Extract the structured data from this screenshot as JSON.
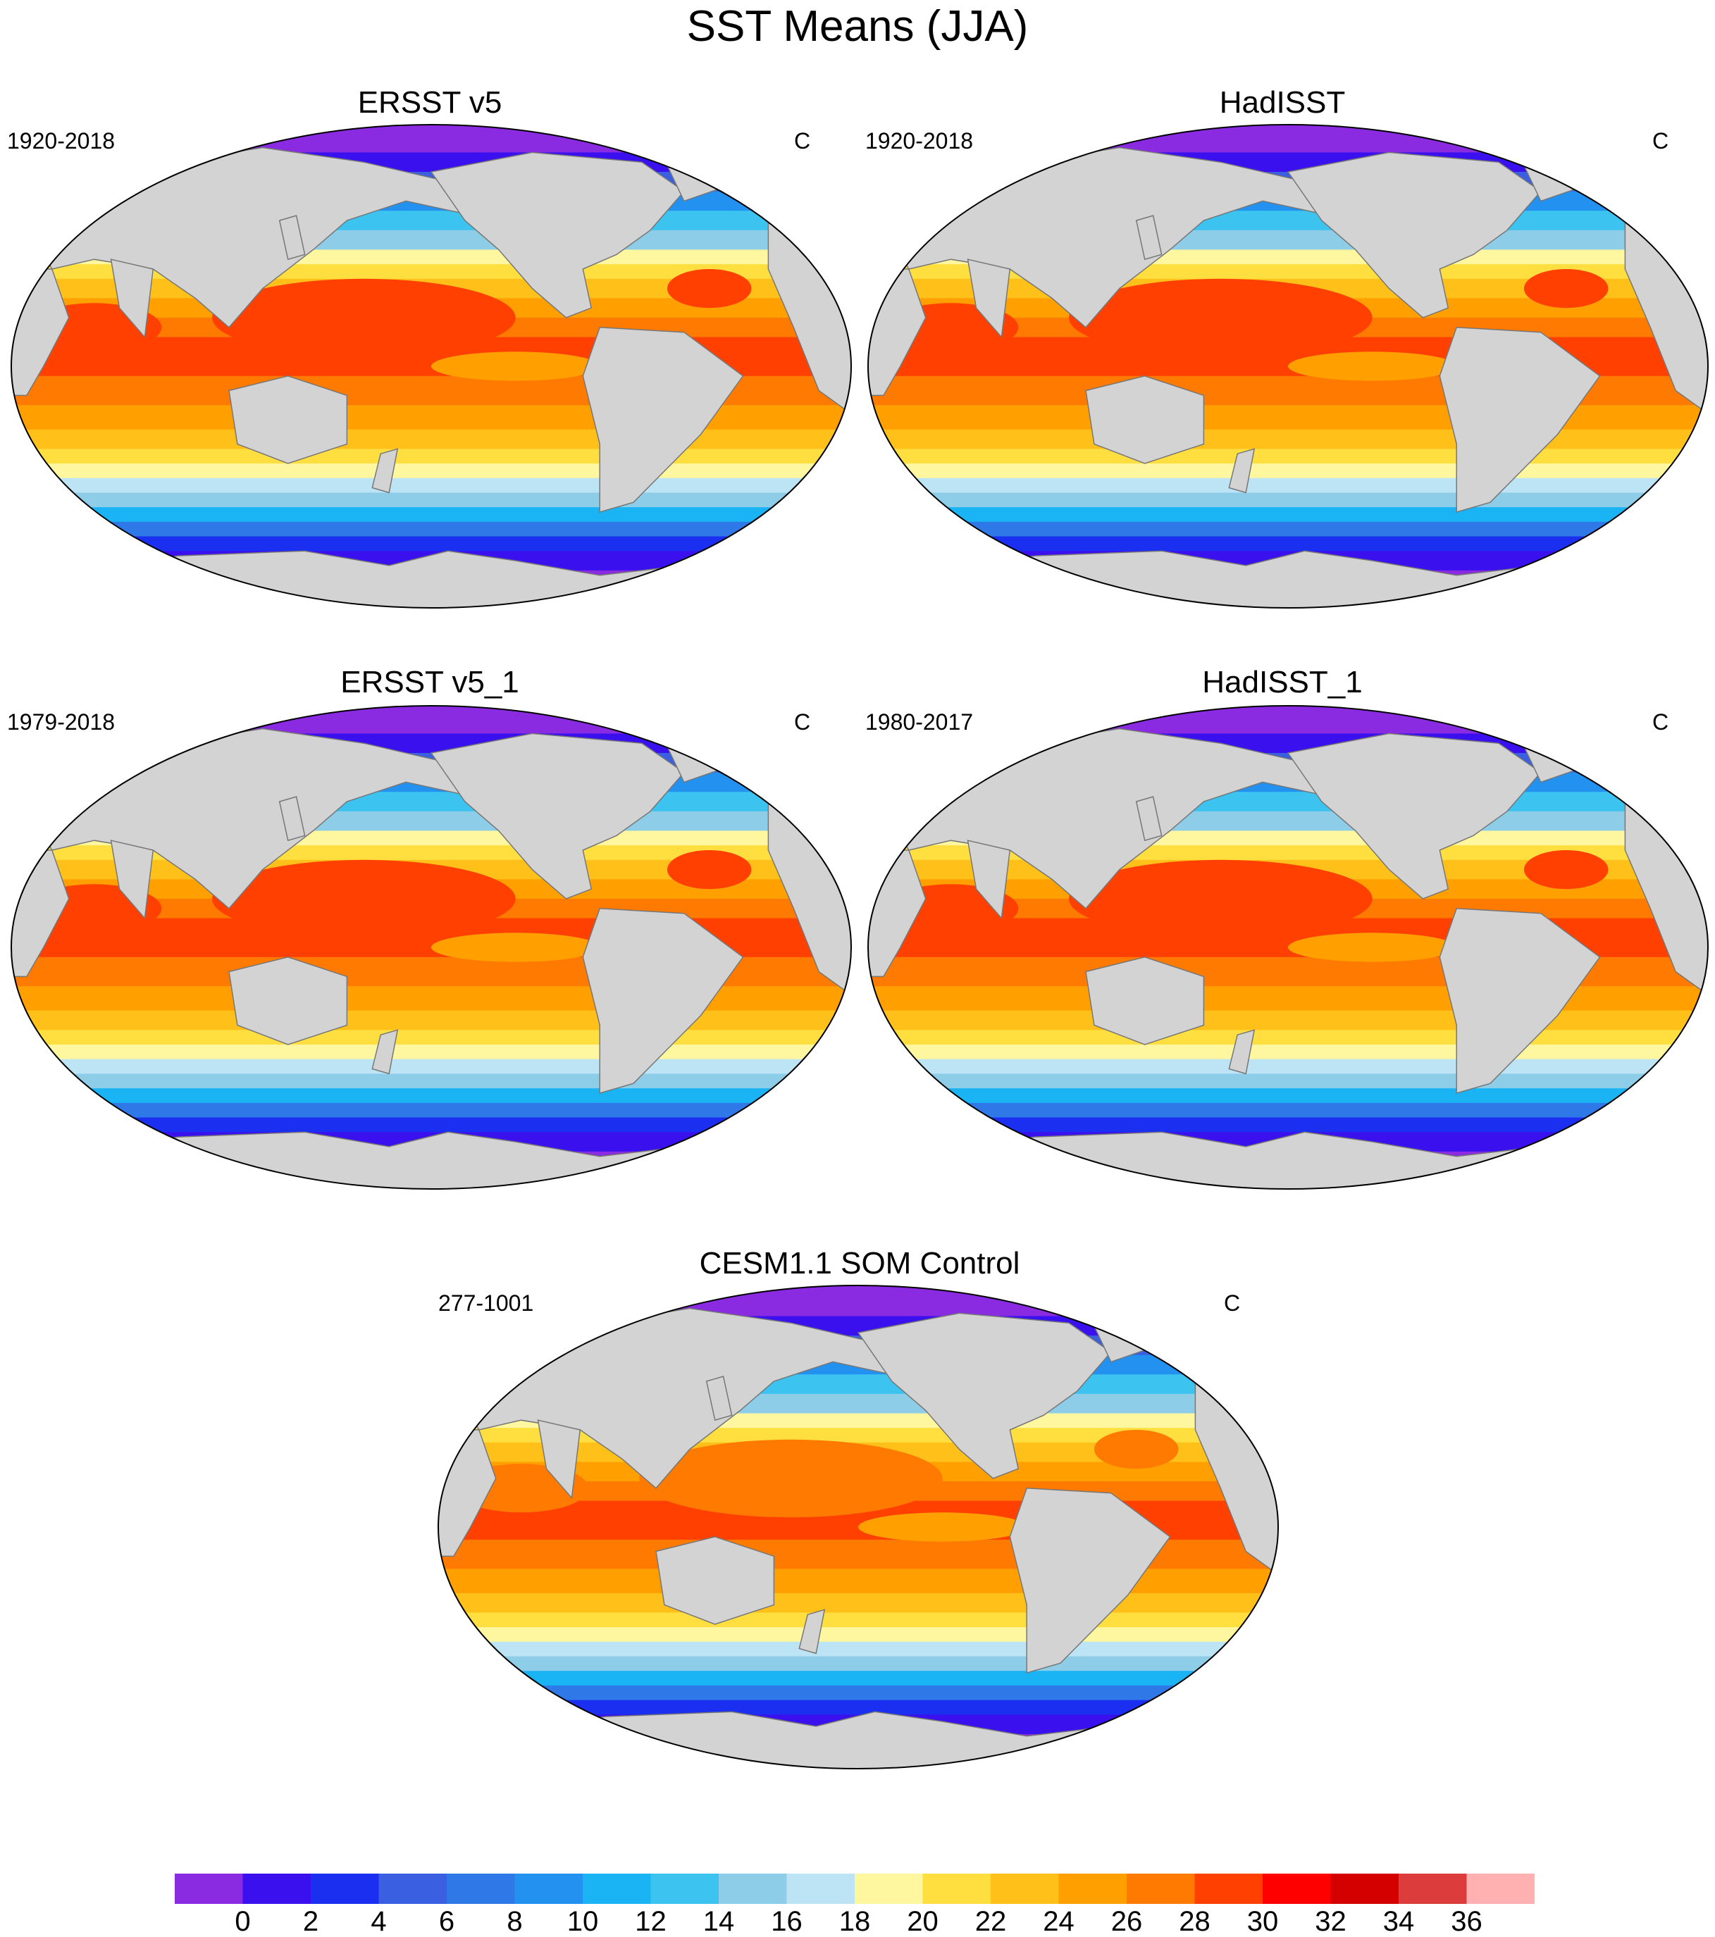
{
  "figure_title": "SST Means (JJA)",
  "panels": [
    {
      "title": "ERSST v5",
      "period": "1920-2018",
      "units": "C"
    },
    {
      "title": "HadISST",
      "period": "1920-2018",
      "units": "C"
    },
    {
      "title": "ERSST v5_1",
      "period": "1979-2018",
      "units": "C"
    },
    {
      "title": "HadISST_1",
      "period": "1980-2017",
      "units": "C"
    },
    {
      "title": "CESM1.1 SOM Control",
      "period": "277-1001",
      "units": "C"
    }
  ],
  "colorbar": {
    "tick_labels": [
      "0",
      "2",
      "4",
      "6",
      "8",
      "10",
      "12",
      "14",
      "16",
      "18",
      "20",
      "22",
      "24",
      "26",
      "28",
      "30",
      "32",
      "34",
      "36"
    ],
    "colors": [
      "#8a2be2",
      "#3a10ee",
      "#1a2fef",
      "#3a5fe0",
      "#2f78e8",
      "#2391f0",
      "#1ab4f5",
      "#3cc3f0",
      "#8ecde8",
      "#bde4f5",
      "#fff6a0",
      "#ffdf40",
      "#ffc01a",
      "#ffa000",
      "#ff7a00",
      "#ff4000",
      "#ff0000",
      "#d40000",
      "#dc3c3c",
      "#ffb0b0"
    ],
    "land_color": "#d3d3d3"
  }
}
